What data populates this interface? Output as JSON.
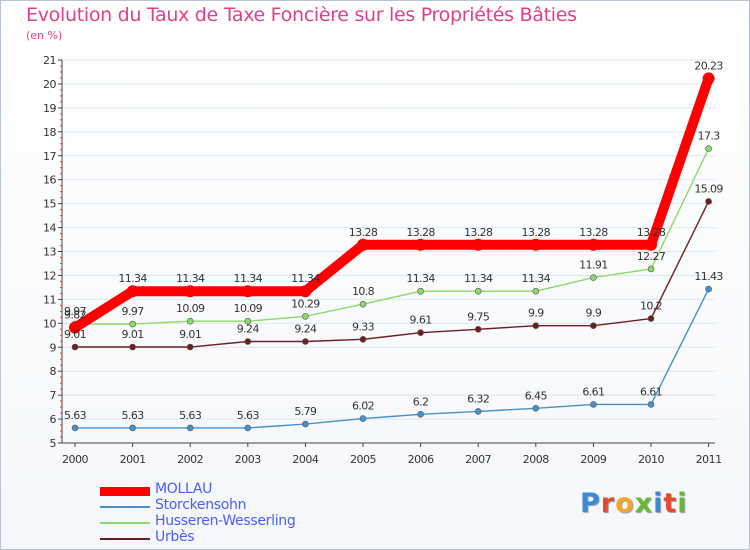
{
  "colors": {
    "title": "#e0408a",
    "axis": "#444444",
    "grid": "#dfe6ee",
    "legend_text": "#4f5cf0"
  },
  "logo": {
    "letters": [
      {
        "char": "P",
        "color": "#3b8ad8"
      },
      {
        "char": "r",
        "color": "#e64a2e"
      },
      {
        "char": "o",
        "color": "#f5a623"
      },
      {
        "char": "x",
        "color": "#6bb82e"
      },
      {
        "char": "i",
        "color": "#3b8ad8"
      },
      {
        "char": "t",
        "color": "#e64a2e"
      },
      {
        "char": "i",
        "color": "#6bb82e"
      }
    ]
  },
  "chart_data": {
    "type": "line",
    "title": "Evolution du Taux de Taxe Foncière sur les Propriétés Bâties",
    "unit_label": "(en %)",
    "xlabel": "",
    "ylabel": "",
    "ylim": [
      5,
      21
    ],
    "yticks": [
      "5",
      "6",
      "7",
      "8",
      "9",
      "10",
      "11",
      "12",
      "13",
      "14",
      "15",
      "16",
      "17",
      "18",
      "19",
      "20",
      "21"
    ],
    "categories": [
      "2000",
      "2001",
      "2002",
      "2003",
      "2004",
      "2005",
      "2006",
      "2007",
      "2008",
      "2009",
      "2010",
      "2011"
    ],
    "series": [
      {
        "name": "Storckensohn",
        "color": "#4a90c8",
        "values": [
          5.63,
          5.63,
          5.63,
          5.63,
          5.79,
          6.02,
          6.2,
          6.32,
          6.45,
          6.61,
          6.61,
          11.43
        ],
        "labels": [
          "5.63",
          "5.63",
          "5.63",
          "5.63",
          "5.79",
          "6.02",
          "6.2",
          "6.32",
          "6.45",
          "6.61",
          "6.61",
          "11.43"
        ]
      },
      {
        "name": "Urbès",
        "color": "#6b1f23",
        "values": [
          9.01,
          9.01,
          9.01,
          9.24,
          9.24,
          9.33,
          9.61,
          9.75,
          9.9,
          9.9,
          10.2,
          15.09
        ],
        "labels": [
          "9.01",
          "9.01",
          "9.01",
          "9.24",
          "9.24",
          "9.33",
          "9.61",
          "9.75",
          "9.9",
          "9.9",
          "10.2",
          "15.09"
        ]
      },
      {
        "name": "Husseren-Wesserling",
        "color": "#8fd86a",
        "values": [
          9.97,
          9.97,
          10.09,
          10.09,
          10.29,
          10.8,
          11.34,
          11.34,
          11.34,
          11.91,
          12.27,
          17.3
        ],
        "labels": [
          "9.97",
          "9.97",
          "10.09",
          "10.09",
          "10.29",
          "10.8",
          "11.34",
          "11.34",
          "11.34",
          "11.91",
          "12.27",
          "17.3"
        ]
      },
      {
        "name": "MOLLAU",
        "color": "#ff0000",
        "values": [
          9.82,
          11.34,
          11.34,
          11.34,
          11.34,
          13.28,
          13.28,
          13.28,
          13.28,
          13.28,
          13.28,
          20.23
        ],
        "labels": [
          "9.82",
          "11.34",
          "11.34",
          "11.34",
          "11.34",
          "13.28",
          "13.28",
          "13.28",
          "13.28",
          "13.28",
          "13.28",
          "20.23"
        ]
      }
    ],
    "legend": [
      {
        "name": "MOLLAU",
        "color": "#ff0000",
        "thick": true
      },
      {
        "name": "Storckensohn",
        "color": "#4a90c8",
        "thick": false
      },
      {
        "name": "Husseren-Wesserling",
        "color": "#8fd86a",
        "thick": false
      },
      {
        "name": "Urbès",
        "color": "#6b1f23",
        "thick": false
      }
    ]
  }
}
